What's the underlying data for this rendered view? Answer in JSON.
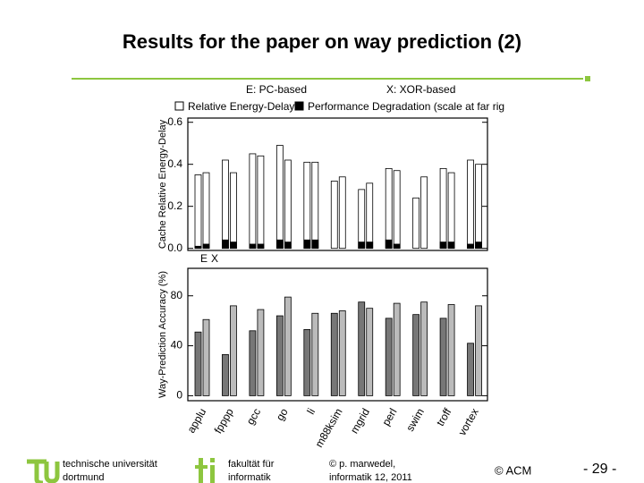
{
  "slide": {
    "title": "Results for the paper on way prediction (2)",
    "footer": {
      "university": [
        "technische universität",
        "dortmund"
      ],
      "faculty": [
        "fakultät für",
        "informatik"
      ],
      "author": [
        "© p. marwedel,",
        "informatik 12,  2011"
      ],
      "credit": "© ACM",
      "page": "- 29 -"
    }
  },
  "chart_data": [
    {
      "type": "bar",
      "ylabel": "Cache Relative Energy-Delay",
      "legend_header": [
        "E: PC-based",
        "X: XOR-based"
      ],
      "variant_labels": [
        "E",
        "X"
      ],
      "ylim": [
        -0.01,
        0.62
      ],
      "yticks": [
        {
          "value": 0,
          "label": "0.0"
        },
        0.2,
        0.4,
        0.6
      ],
      "series": [
        {
          "name": "Relative Energy-Delay",
          "color": "#ffffff",
          "values_E": [
            0.35,
            0.42,
            0.45,
            0.49,
            0.41,
            0.32,
            0.28,
            0.38,
            0.24,
            0.38,
            0.42
          ],
          "values_X": [
            0.36,
            0.36,
            0.44,
            0.42,
            0.41,
            0.34,
            0.31,
            0.37,
            0.34,
            0.36,
            0.4
          ]
        },
        {
          "name": "Performance Degradation (scale at far rig",
          "color": "#000000",
          "values_E": [
            0.01,
            0.04,
            0.02,
            0.04,
            0.04,
            0,
            0.03,
            0.04,
            0,
            0.03,
            0.02
          ],
          "values_X": [
            0.02,
            0.03,
            0.02,
            0.03,
            0.04,
            0,
            0.03,
            0.02,
            0,
            0.03,
            0.03
          ]
        }
      ]
    },
    {
      "type": "bar",
      "ylabel": "Way-Prediction Accuracy (%)",
      "categories": [
        "applu",
        "fpppp",
        "gcc",
        "go",
        "li",
        "m88ksim",
        "mgrid",
        "perl",
        "swim",
        "troff",
        "vortex"
      ],
      "ylim": [
        -4,
        102
      ],
      "yticks": [
        0,
        40,
        80
      ],
      "series": [
        {
          "color": "#777777",
          "values_E": [
            51,
            33,
            52,
            64,
            53,
            66,
            75,
            62,
            65,
            62,
            42
          ]
        },
        {
          "color": "#bbbbbb",
          "values_X": [
            61,
            72,
            69,
            79,
            66,
            68,
            70,
            74,
            75,
            73,
            72
          ]
        }
      ]
    }
  ]
}
